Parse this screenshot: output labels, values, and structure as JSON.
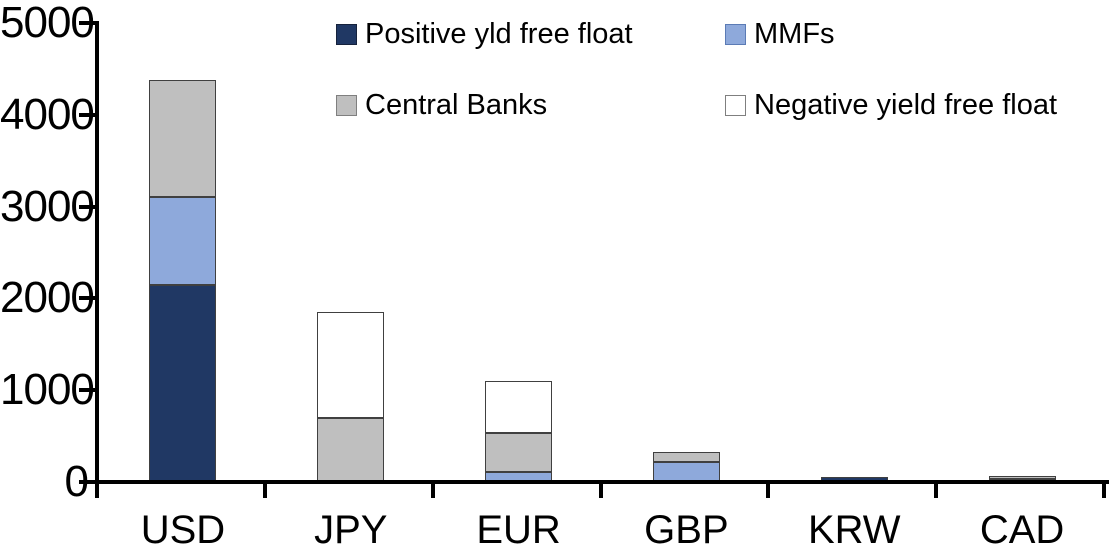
{
  "chart_data": {
    "type": "bar",
    "stacked": true,
    "title": "",
    "xlabel": "",
    "ylabel": "",
    "categories": [
      "USD",
      "JPY",
      "EUR",
      "GBP",
      "KRW",
      "CAD"
    ],
    "series": [
      {
        "name": "Positive yld free float",
        "color": "#203864",
        "swatch_border": "#16223C",
        "values": [
          2150,
          0,
          0,
          0,
          50,
          35
        ]
      },
      {
        "name": "MMFs",
        "color": "#8EA9DB",
        "swatch_border": "#5B7BB5",
        "values": [
          950,
          0,
          110,
          220,
          0,
          0
        ]
      },
      {
        "name": "Central Banks",
        "color": "#BFBFBF",
        "swatch_border": "#7F7F7F",
        "values": [
          1280,
          700,
          420,
          110,
          0,
          30
        ]
      },
      {
        "name": "Negative yield free float",
        "color": "#FFFFFF",
        "swatch_border": "#7F7F7F",
        "values": [
          0,
          1150,
          570,
          0,
          0,
          0
        ]
      }
    ],
    "totals_by_category": [
      4380,
      1850,
      1100,
      330,
      50,
      65
    ],
    "ylim": [
      0,
      5000
    ],
    "yticks": [
      0,
      1000,
      2000,
      3000,
      4000,
      5000
    ],
    "grid": false,
    "legend_position": "top",
    "axis_color": "#000000",
    "segment_border_color": "#404040",
    "background_color": "#FFFFFF"
  }
}
